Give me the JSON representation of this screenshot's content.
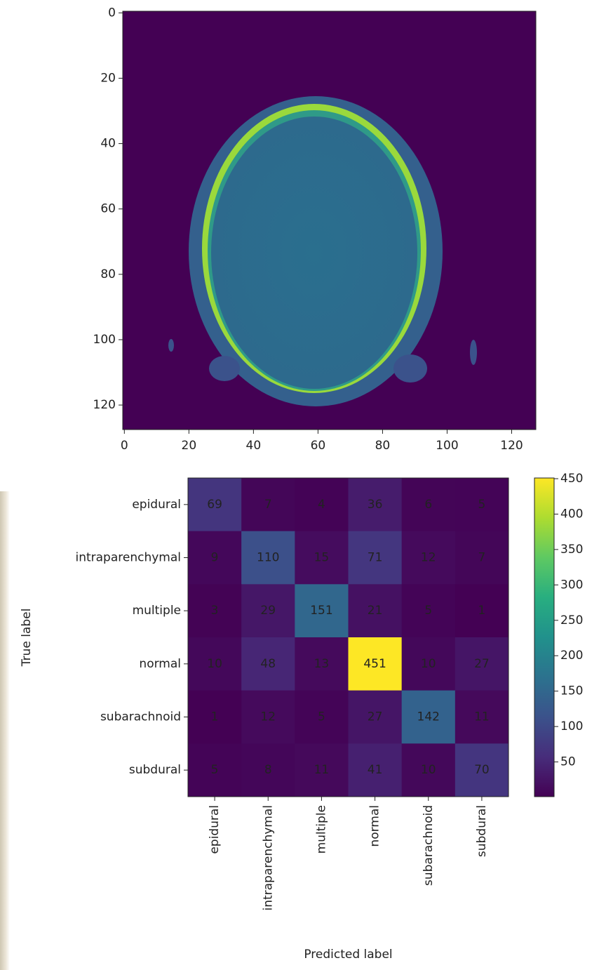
{
  "chart_data": [
    {
      "type": "image",
      "colormap": "viridis",
      "xlim": [
        -0.5,
        127.5
      ],
      "ylim": [
        127.5,
        -0.5
      ],
      "xticks": [
        0,
        20,
        40,
        60,
        80,
        100,
        120
      ],
      "yticks": [
        0,
        20,
        40,
        60,
        80,
        100,
        120
      ]
    },
    {
      "type": "heatmap",
      "colormap": "viridis",
      "xlabel": "Predicted label",
      "ylabel": "True label",
      "x_categories": [
        "epidural",
        "intraparenchymal",
        "multiple",
        "normal",
        "subarachnoid",
        "subdural"
      ],
      "y_categories": [
        "epidural",
        "intraparenchymal",
        "multiple",
        "normal",
        "subarachnoid",
        "subdural"
      ],
      "values": [
        [
          69,
          7,
          4,
          36,
          6,
          5
        ],
        [
          9,
          110,
          15,
          71,
          12,
          7
        ],
        [
          3,
          29,
          151,
          21,
          5,
          1
        ],
        [
          10,
          48,
          13,
          451,
          10,
          27
        ],
        [
          1,
          12,
          5,
          27,
          142,
          11
        ],
        [
          5,
          8,
          11,
          41,
          10,
          70
        ]
      ],
      "clim": [
        1,
        451
      ],
      "cticks": [
        50,
        100,
        150,
        200,
        250,
        300,
        350,
        400,
        450
      ]
    }
  ]
}
